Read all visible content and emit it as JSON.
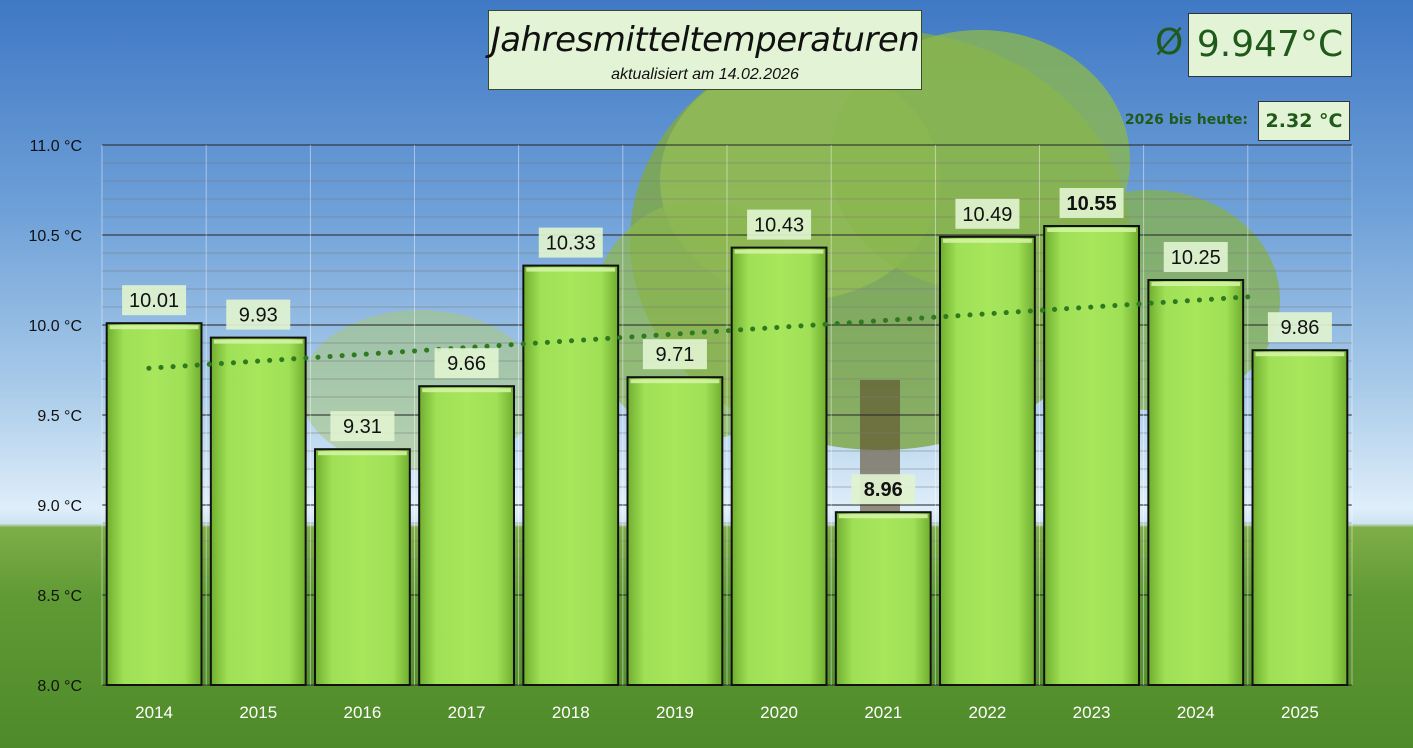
{
  "title": "Jahresmitteltemperaturen",
  "subtitle_label": "aktualisiert am",
  "subtitle_date": "14.02.2026",
  "average": {
    "symbol": "Ø",
    "value": "9.947°C"
  },
  "year_to_date": {
    "label": "2026 bis heute:",
    "value": "2.32 °C"
  },
  "colors": {
    "bar": "#9ad94f",
    "bar_dark": "#6aa92b",
    "trend": "#2f7a1f",
    "label_bg": "#dff3cf",
    "text": "#111111",
    "axis_text": "#ffffff"
  },
  "chart_data": {
    "type": "bar",
    "categories": [
      "2014",
      "2015",
      "2016",
      "2017",
      "2018",
      "2019",
      "2020",
      "2021",
      "2022",
      "2023",
      "2024",
      "2025"
    ],
    "values": [
      10.01,
      9.93,
      9.31,
      9.66,
      10.33,
      9.71,
      10.43,
      8.96,
      10.49,
      10.55,
      10.25,
      9.86
    ],
    "value_labels": [
      "10.01",
      "9.93",
      "9.31",
      "9.66",
      "10.33",
      "9.71",
      "10.43",
      "8.96",
      "10.49",
      "10.55",
      "10.25",
      "9.86"
    ],
    "bold_labels": [
      "2021",
      "2023"
    ],
    "ylim": [
      8.0,
      11.0
    ],
    "yticks": [
      8.0,
      8.5,
      9.0,
      9.5,
      10.0,
      10.5,
      11.0
    ],
    "ytick_labels": [
      "8.0 °C",
      "8.5 °C",
      "9.0 °C",
      "9.5 °C",
      "10.0 °C",
      "10.5 °C",
      "11.0 °C"
    ],
    "trendline": {
      "style": "dotted",
      "start": 9.76,
      "end": 10.16
    },
    "grid": true,
    "legend": "none"
  }
}
